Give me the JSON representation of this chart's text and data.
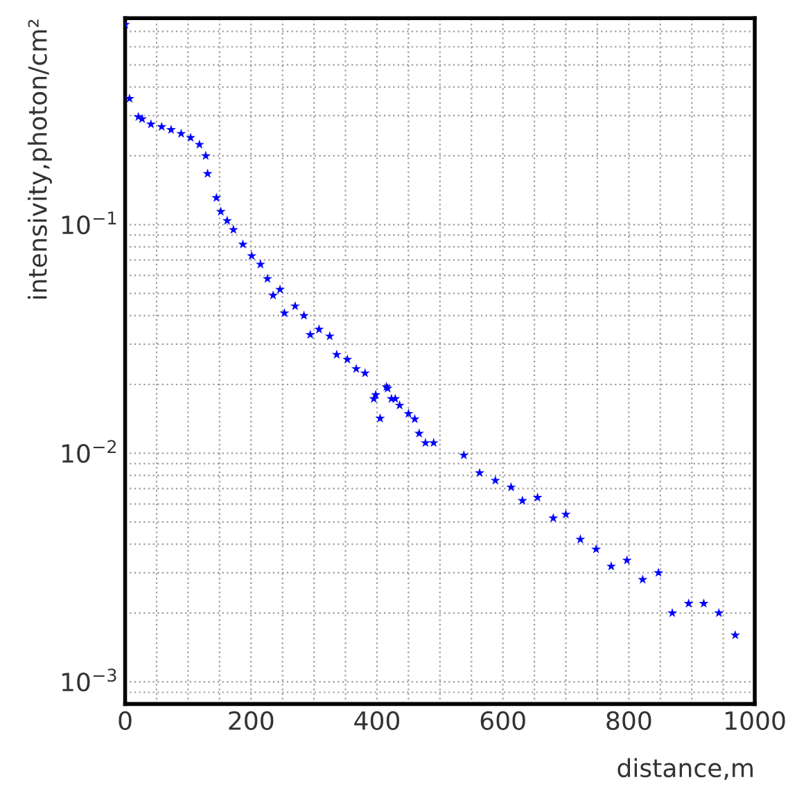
{
  "chart_data": {
    "type": "scatter",
    "xlabel": "distance,m",
    "ylabel": "intensivity,photon/cm²",
    "log": "y",
    "grid": true,
    "marker": "star",
    "xlim": [
      0,
      1000
    ],
    "xticks": [
      0,
      200,
      400,
      600,
      800,
      1000
    ],
    "ylim": [
      0.0008,
      0.8
    ],
    "yticks": [
      {
        "value": 0.001,
        "label": "10$^{−3}$"
      },
      {
        "value": 0.01,
        "label": "10$^{−2}$"
      },
      {
        "value": 0.1,
        "label": "10$^{−1}$"
      }
    ],
    "series": [
      {
        "color": "#0000ff",
        "x": [
          0,
          7,
          21,
          27,
          41,
          58,
          73,
          89,
          104,
          118,
          128,
          131,
          145,
          152,
          162,
          172,
          187,
          201,
          215,
          226,
          235,
          246,
          253,
          270,
          284,
          294,
          308,
          325,
          336,
          353,
          367,
          381,
          395,
          398,
          405,
          415,
          417,
          423,
          429,
          436,
          450,
          460,
          467,
          477,
          490,
          538,
          563,
          588,
          613,
          631,
          655,
          680,
          700,
          723,
          748,
          772,
          797,
          822,
          847,
          869,
          895,
          919,
          943,
          969
        ],
        "values": [
          0.75,
          0.356,
          0.296,
          0.29,
          0.275,
          0.268,
          0.26,
          0.25,
          0.24,
          0.224,
          0.2,
          0.167,
          0.131,
          0.114,
          0.104,
          0.095,
          0.082,
          0.073,
          0.067,
          0.058,
          0.049,
          0.052,
          0.041,
          0.044,
          0.04,
          0.033,
          0.0348,
          0.0325,
          0.027,
          0.0257,
          0.0234,
          0.0224,
          0.0173,
          0.018,
          0.0142,
          0.0195,
          0.0192,
          0.0173,
          0.0173,
          0.0162,
          0.0149,
          0.0141,
          0.0122,
          0.0111,
          0.0111,
          0.0098,
          0.0082,
          0.0076,
          0.0071,
          0.0062,
          0.0064,
          0.0052,
          0.0054,
          0.0042,
          0.0038,
          0.0032,
          0.0034,
          0.0028,
          0.003,
          0.002,
          0.0022,
          0.0022,
          0.002,
          0.0016
        ]
      }
    ]
  }
}
